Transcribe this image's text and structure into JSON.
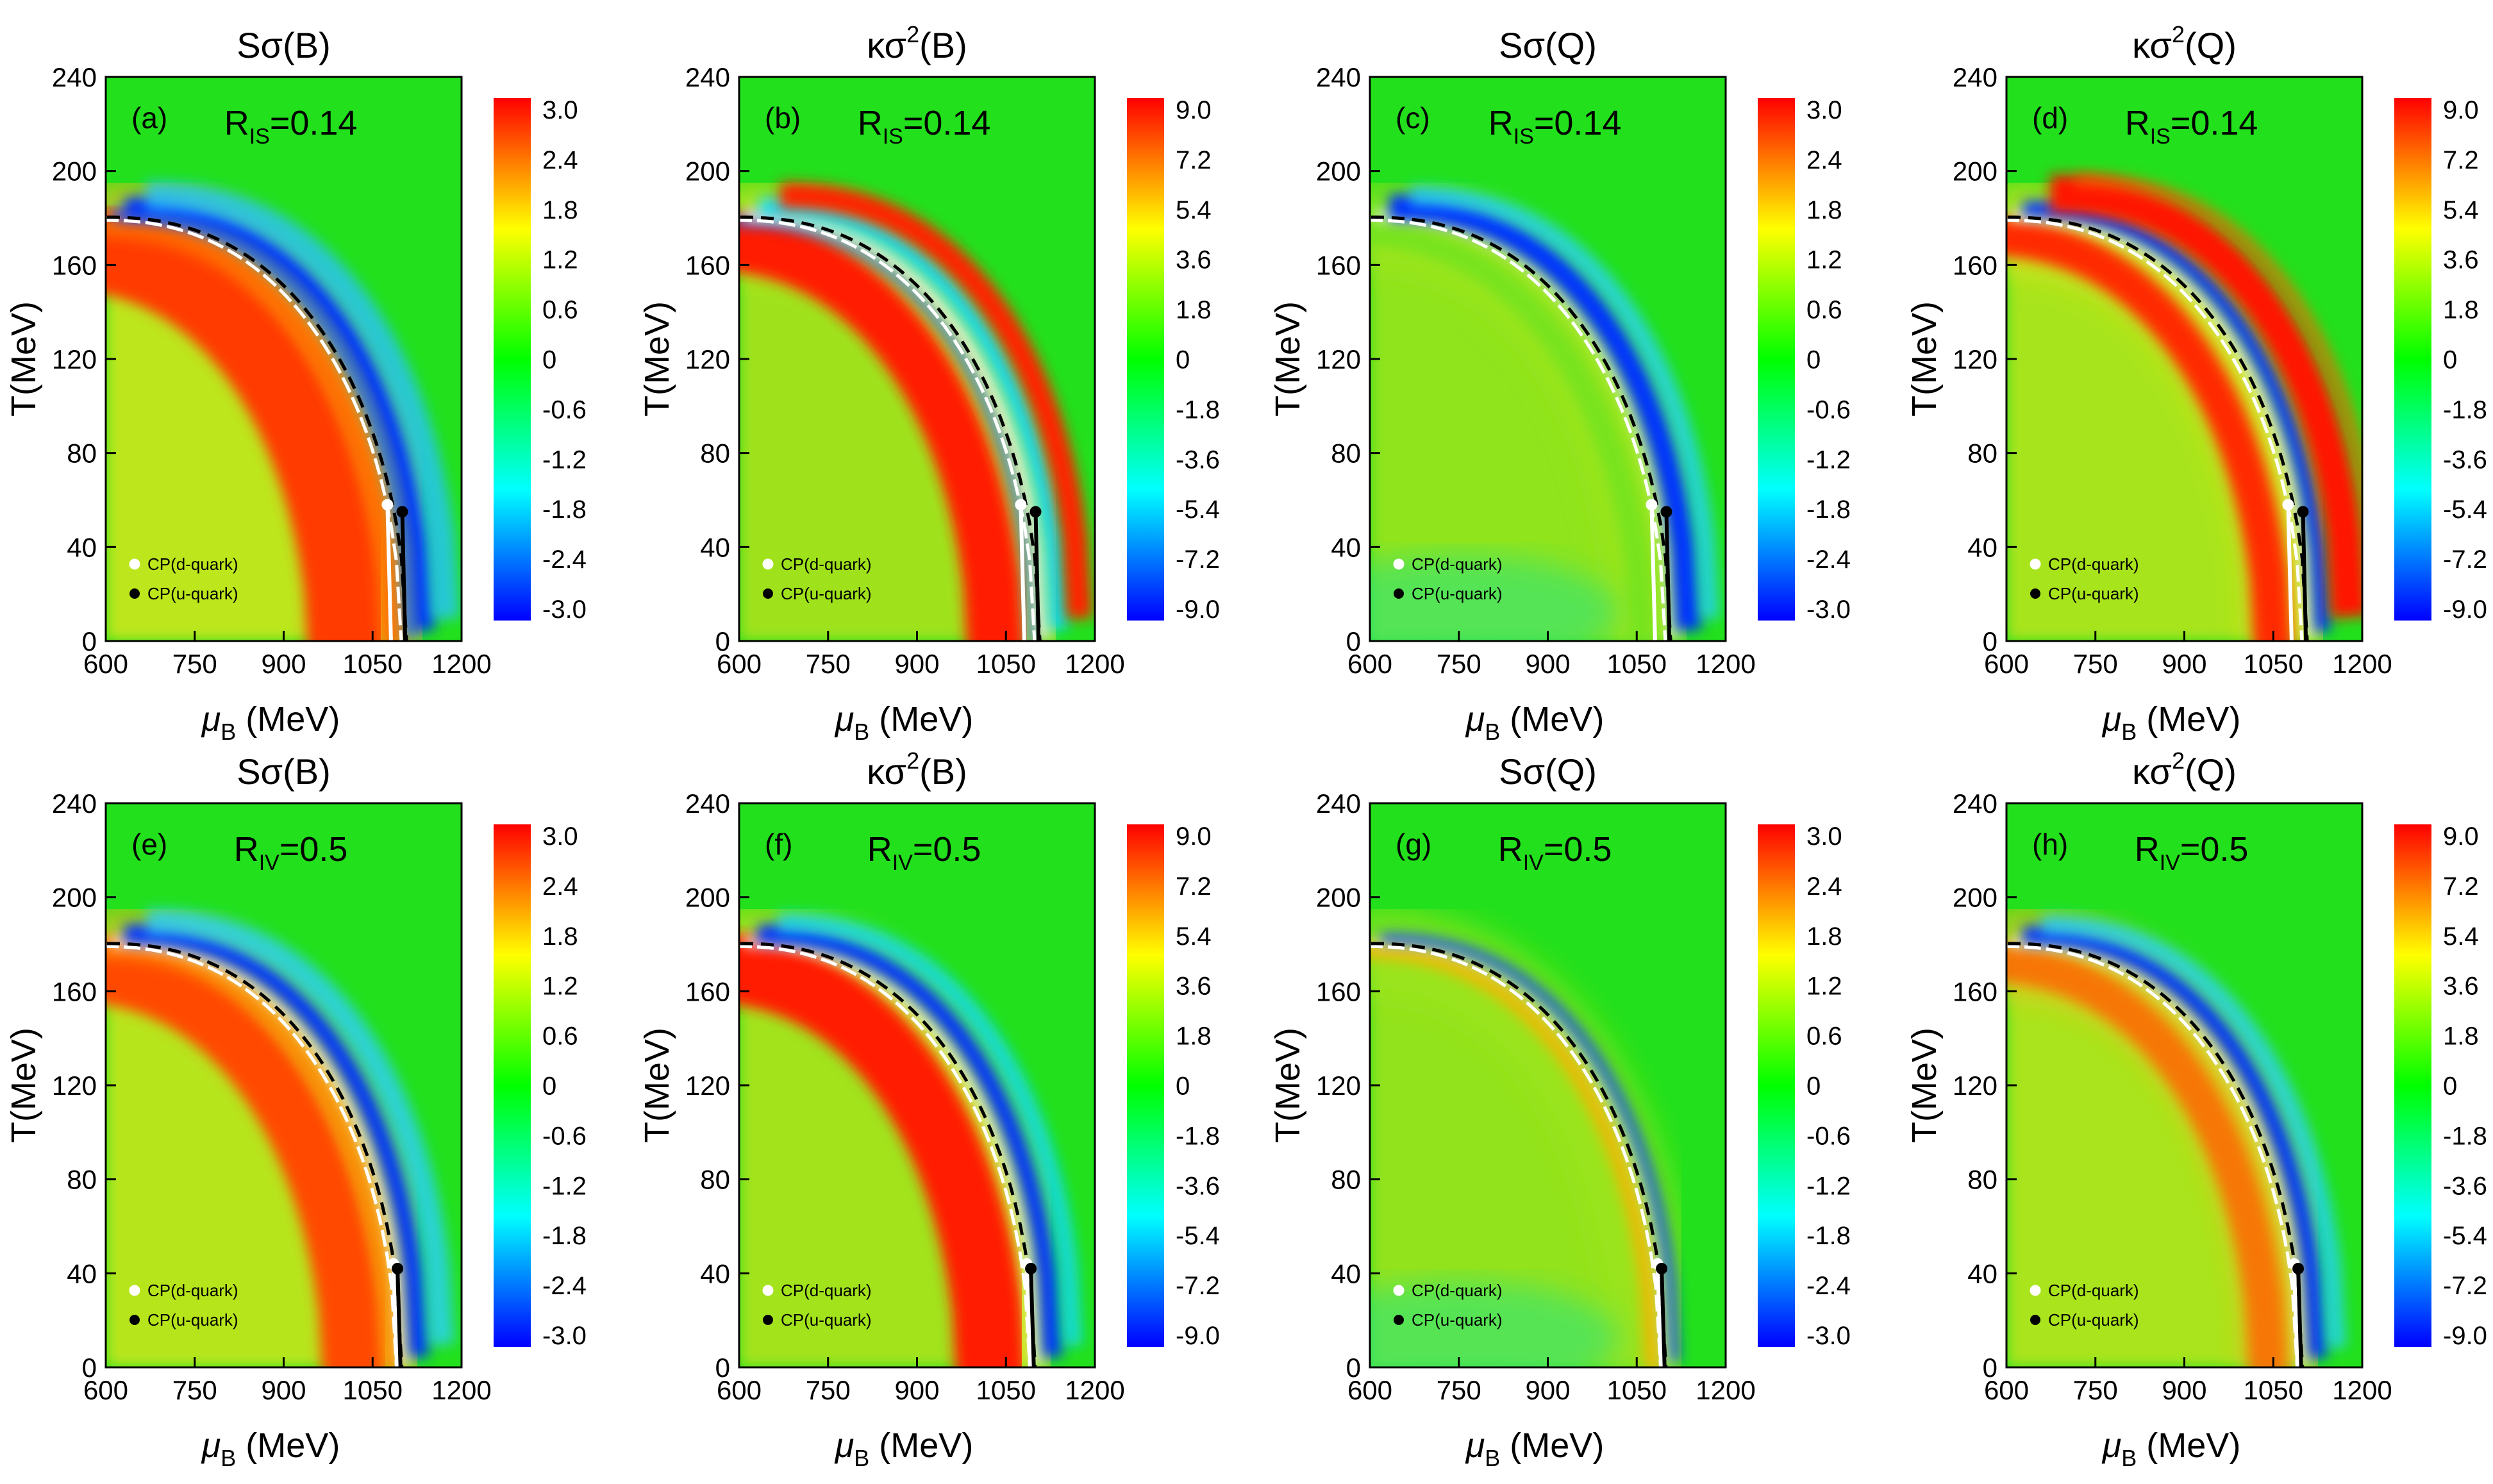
{
  "figure": {
    "colors": {
      "background": "#ffffff",
      "field": "#22e01c",
      "axis": "#000000",
      "dashed_line": "#000000",
      "white_line": "#ffffff",
      "cp_d_marker": "#ffffff",
      "cp_u_marker": "#000000",
      "colormap": [
        "#0000ff",
        "#00ffff",
        "#00ff00",
        "#ffff00",
        "#ff0000"
      ]
    }
  },
  "chart_data": [
    {
      "type": "heatmap",
      "panel": "(a)",
      "title": "Sσ(B)",
      "title_main": "Sσ",
      "title_sup": "",
      "title_arg": "(B)",
      "param_label": "R",
      "param_sub": "IS",
      "param_value": "=0.14",
      "xlabel": "μ",
      "xlabel_sub": "B",
      "xlabel_unit": " (MeV)",
      "ylabel": "T(MeV)",
      "x_ticks": [
        "600",
        "750",
        "900",
        "1050",
        "1200"
      ],
      "xlim": [
        600,
        1200
      ],
      "y_ticks": [
        "0",
        "40",
        "80",
        "120",
        "160",
        "200",
        "240"
      ],
      "ylim": [
        0,
        240
      ],
      "colorbar_ticks": [
        "3.0",
        "2.4",
        "1.8",
        "1.2",
        "0.6",
        "0",
        "-0.6",
        "-1.2",
        "-1.8",
        "-2.4",
        "-3.0"
      ],
      "colorbar_range": [
        -3.0,
        3.0
      ],
      "cp_d": {
        "mu": 1075,
        "T": 58
      },
      "cp_u": {
        "mu": 1100,
        "T": 55
      },
      "endpoint_mu": 1105,
      "legend": [
        "CP(d-quark)",
        "CP(u-quark)"
      ]
    },
    {
      "type": "heatmap",
      "panel": "(b)",
      "title": "κσ2(B)",
      "title_main": "κσ",
      "title_sup": "2",
      "title_arg": "(B)",
      "param_label": "R",
      "param_sub": "IS",
      "param_value": "=0.14",
      "xlabel": "μ",
      "xlabel_sub": "B",
      "xlabel_unit": " (MeV)",
      "ylabel": "T(MeV)",
      "x_ticks": [
        "600",
        "750",
        "900",
        "1050",
        "1200"
      ],
      "xlim": [
        600,
        1200
      ],
      "y_ticks": [
        "0",
        "40",
        "80",
        "120",
        "160",
        "200",
        "240"
      ],
      "ylim": [
        0,
        240
      ],
      "colorbar_ticks": [
        "9.0",
        "7.2",
        "5.4",
        "3.6",
        "1.8",
        "0",
        "-1.8",
        "-3.6",
        "-5.4",
        "-7.2",
        "-9.0"
      ],
      "colorbar_range": [
        -9.0,
        9.0
      ],
      "cp_d": {
        "mu": 1075,
        "T": 58
      },
      "cp_u": {
        "mu": 1100,
        "T": 55
      },
      "endpoint_mu": 1105,
      "legend": [
        "CP(d-quark)",
        "CP(u-quark)"
      ]
    },
    {
      "type": "heatmap",
      "panel": "(c)",
      "title": "Sσ(Q)",
      "title_main": "Sσ",
      "title_sup": "",
      "title_arg": "(Q)",
      "param_label": "R",
      "param_sub": "IS",
      "param_value": "=0.14",
      "xlabel": "μ",
      "xlabel_sub": "B",
      "xlabel_unit": " (MeV)",
      "ylabel": "T(MeV)",
      "x_ticks": [
        "600",
        "750",
        "900",
        "1050",
        "1200"
      ],
      "xlim": [
        600,
        1200
      ],
      "y_ticks": [
        "0",
        "40",
        "80",
        "120",
        "160",
        "200",
        "240"
      ],
      "ylim": [
        0,
        240
      ],
      "colorbar_ticks": [
        "3.0",
        "2.4",
        "1.8",
        "1.2",
        "0.6",
        "0",
        "-0.6",
        "-1.2",
        "-1.8",
        "-2.4",
        "-3.0"
      ],
      "colorbar_range": [
        -3.0,
        3.0
      ],
      "cp_d": {
        "mu": 1075,
        "T": 58
      },
      "cp_u": {
        "mu": 1100,
        "T": 55
      },
      "endpoint_mu": 1105,
      "legend": [
        "CP(d-quark)",
        "CP(u-quark)"
      ]
    },
    {
      "type": "heatmap",
      "panel": "(d)",
      "title": "κσ2(Q)",
      "title_main": "κσ",
      "title_sup": "2",
      "title_arg": "(Q)",
      "param_label": "R",
      "param_sub": "IS",
      "param_value": "=0.14",
      "xlabel": "μ",
      "xlabel_sub": "B",
      "xlabel_unit": " (MeV)",
      "ylabel": "T(MeV)",
      "x_ticks": [
        "600",
        "750",
        "900",
        "1050",
        "1200"
      ],
      "xlim": [
        600,
        1200
      ],
      "y_ticks": [
        "0",
        "40",
        "80",
        "120",
        "160",
        "200",
        "240"
      ],
      "ylim": [
        0,
        240
      ],
      "colorbar_ticks": [
        "9.0",
        "7.2",
        "5.4",
        "3.6",
        "1.8",
        "0",
        "-1.8",
        "-3.6",
        "-5.4",
        "-7.2",
        "-9.0"
      ],
      "colorbar_range": [
        -9.0,
        9.0
      ],
      "cp_d": {
        "mu": 1075,
        "T": 58
      },
      "cp_u": {
        "mu": 1100,
        "T": 55
      },
      "endpoint_mu": 1105,
      "legend": [
        "CP(d-quark)",
        "CP(u-quark)"
      ]
    },
    {
      "type": "heatmap",
      "panel": "(e)",
      "title": "Sσ(B)",
      "title_main": "Sσ",
      "title_sup": "",
      "title_arg": "(B)",
      "param_label": "R",
      "param_sub": "IV",
      "param_value": "=0.5",
      "xlabel": "μ",
      "xlabel_sub": "B",
      "xlabel_unit": " (MeV)",
      "ylabel": "T(MeV)",
      "x_ticks": [
        "600",
        "750",
        "900",
        "1050",
        "1200"
      ],
      "xlim": [
        600,
        1200
      ],
      "y_ticks": [
        "0",
        "40",
        "80",
        "120",
        "160",
        "200",
        "240"
      ],
      "ylim": [
        0,
        240
      ],
      "colorbar_ticks": [
        "3.0",
        "2.4",
        "1.8",
        "1.2",
        "0.6",
        "0",
        "-0.6",
        "-1.2",
        "-1.8",
        "-2.4",
        "-3.0"
      ],
      "colorbar_range": [
        -3.0,
        3.0
      ],
      "cp_d": {
        "mu": 1085,
        "T": 44
      },
      "cp_u": {
        "mu": 1092,
        "T": 42
      },
      "endpoint_mu": 1097,
      "legend": [
        "CP(d-quark)",
        "CP(u-quark)"
      ]
    },
    {
      "type": "heatmap",
      "panel": "(f)",
      "title": "κσ2(B)",
      "title_main": "κσ",
      "title_sup": "2",
      "title_arg": "(B)",
      "param_label": "R",
      "param_sub": "IV",
      "param_value": "=0.5",
      "xlabel": "μ",
      "xlabel_sub": "B",
      "xlabel_unit": " (MeV)",
      "ylabel": "T(MeV)",
      "x_ticks": [
        "600",
        "750",
        "900",
        "1050",
        "1200"
      ],
      "xlim": [
        600,
        1200
      ],
      "y_ticks": [
        "0",
        "40",
        "80",
        "120",
        "160",
        "200",
        "240"
      ],
      "ylim": [
        0,
        240
      ],
      "colorbar_ticks": [
        "9.0",
        "7.2",
        "5.4",
        "3.6",
        "1.8",
        "0",
        "-1.8",
        "-3.6",
        "-5.4",
        "-7.2",
        "-9.0"
      ],
      "colorbar_range": [
        -9.0,
        9.0
      ],
      "cp_d": {
        "mu": 1085,
        "T": 44
      },
      "cp_u": {
        "mu": 1092,
        "T": 42
      },
      "endpoint_mu": 1097,
      "legend": [
        "CP(d-quark)",
        "CP(u-quark)"
      ]
    },
    {
      "type": "heatmap",
      "panel": "(g)",
      "title": "Sσ(Q)",
      "title_main": "Sσ",
      "title_sup": "",
      "title_arg": "(Q)",
      "param_label": "R",
      "param_sub": "IV",
      "param_value": "=0.5",
      "xlabel": "μ",
      "xlabel_sub": "B",
      "xlabel_unit": " (MeV)",
      "ylabel": "T(MeV)",
      "x_ticks": [
        "600",
        "750",
        "900",
        "1050",
        "1200"
      ],
      "xlim": [
        600,
        1200
      ],
      "y_ticks": [
        "0",
        "40",
        "80",
        "120",
        "160",
        "200",
        "240"
      ],
      "ylim": [
        0,
        240
      ],
      "colorbar_ticks": [
        "3.0",
        "2.4",
        "1.8",
        "1.2",
        "0.6",
        "0",
        "-0.6",
        "-1.2",
        "-1.8",
        "-2.4",
        "-3.0"
      ],
      "colorbar_range": [
        -3.0,
        3.0
      ],
      "cp_d": {
        "mu": 1085,
        "T": 44
      },
      "cp_u": {
        "mu": 1092,
        "T": 42
      },
      "endpoint_mu": 1097,
      "legend": [
        "CP(d-quark)",
        "CP(u-quark)"
      ]
    },
    {
      "type": "heatmap",
      "panel": "(h)",
      "title": "κσ2(Q)",
      "title_main": "κσ",
      "title_sup": "2",
      "title_arg": "(Q)",
      "param_label": "R",
      "param_sub": "IV",
      "param_value": "=0.5",
      "xlabel": "μ",
      "xlabel_sub": "B",
      "xlabel_unit": " (MeV)",
      "ylabel": "T(MeV)",
      "x_ticks": [
        "600",
        "750",
        "900",
        "1050",
        "1200"
      ],
      "xlim": [
        600,
        1200
      ],
      "y_ticks": [
        "0",
        "40",
        "80",
        "120",
        "160",
        "200",
        "240"
      ],
      "ylim": [
        0,
        240
      ],
      "colorbar_ticks": [
        "9.0",
        "7.2",
        "5.4",
        "3.6",
        "1.8",
        "0",
        "-1.8",
        "-3.6",
        "-5.4",
        "-7.2",
        "-9.0"
      ],
      "colorbar_range": [
        -9.0,
        9.0
      ],
      "cp_d": {
        "mu": 1085,
        "T": 44
      },
      "cp_u": {
        "mu": 1092,
        "T": 42
      },
      "endpoint_mu": 1097,
      "legend": [
        "CP(d-quark)",
        "CP(u-quark)"
      ]
    }
  ]
}
